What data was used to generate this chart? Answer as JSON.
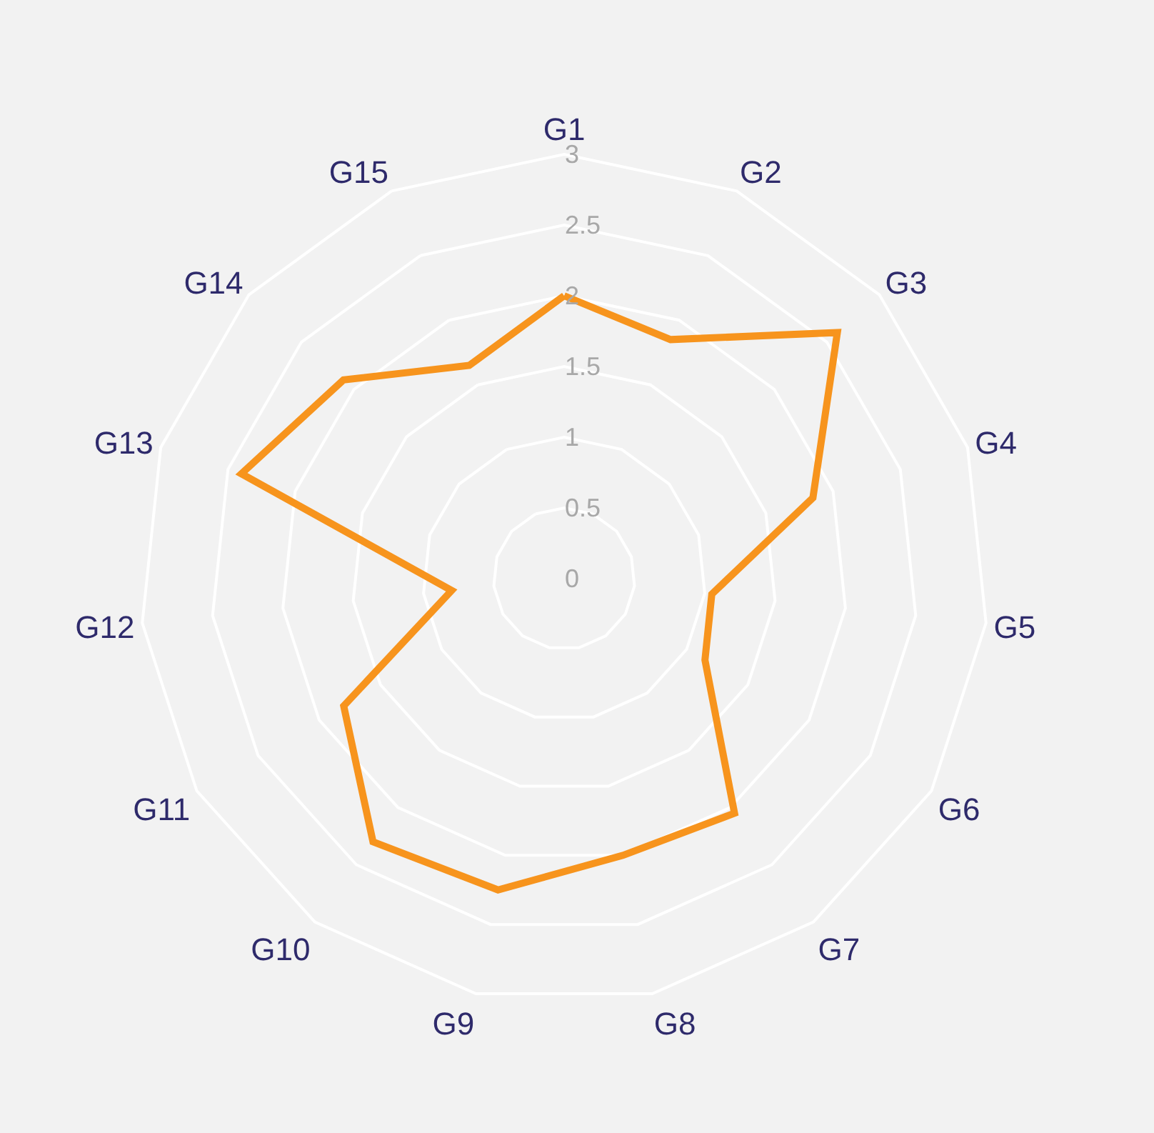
{
  "chart_data": {
    "type": "radar",
    "categories": [
      "G1",
      "G2",
      "G3",
      "G4",
      "G5",
      "G6",
      "G7",
      "G8",
      "G9",
      "G10",
      "G11",
      "G12",
      "G13",
      "G14",
      "G15"
    ],
    "series": [
      {
        "color": "#f7941d",
        "values": [
          2.0,
          1.85,
          2.6,
          1.85,
          1.05,
          1.15,
          2.05,
          2.0,
          2.25,
          2.3,
          1.8,
          0.8,
          2.4,
          2.1,
          1.65
        ]
      }
    ],
    "ylim": [
      0,
      3
    ],
    "yticks": [
      0,
      0.5,
      1,
      1.5,
      2,
      2.5,
      3
    ],
    "grid": "y",
    "line_style": "solid",
    "marker": "none"
  }
}
